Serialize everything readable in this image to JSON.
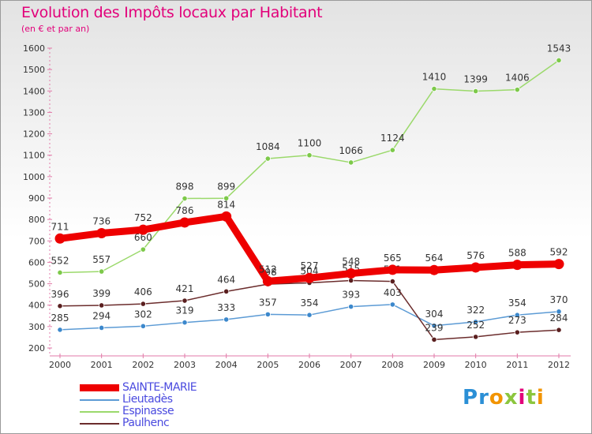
{
  "title": "Evolution des Impôts locaux par Habitant",
  "subtitle": "(en € et par an)",
  "logo_letters": [
    {
      "ch": "P",
      "color": "#2b8fd6"
    },
    {
      "ch": "r",
      "color": "#2b8fd6"
    },
    {
      "ch": "o",
      "color": "#f29400"
    },
    {
      "ch": "x",
      "color": "#8cc63e"
    },
    {
      "ch": "i",
      "color": "#e2007a"
    },
    {
      "ch": "t",
      "color": "#8cc63e"
    },
    {
      "ch": "i",
      "color": "#f29400"
    }
  ],
  "chart_data": {
    "type": "line",
    "title": "Evolution des Impôts locaux par Habitant",
    "ylabel": "(en € et par an)",
    "xlabel": "",
    "x": [
      "2000",
      "2001",
      "2002",
      "2003",
      "2004",
      "2005",
      "2006",
      "2007",
      "2008",
      "2009",
      "2010",
      "2011",
      "2012"
    ],
    "ylim": [
      200,
      1600
    ],
    "yticks": [
      200,
      300,
      400,
      500,
      600,
      700,
      800,
      900,
      1000,
      1100,
      1200,
      1300,
      1400,
      1500,
      1600
    ],
    "grid": false,
    "legend_position": "bottom-left",
    "series": [
      {
        "name": "SAINTE-MARIE",
        "color": "#ee0000",
        "width": 9,
        "values": [
          711,
          736,
          752,
          786,
          814,
          512,
          527,
          548,
          565,
          564,
          576,
          588,
          592
        ],
        "labels": [
          "711",
          "736",
          "752",
          "786",
          "814",
          "512",
          "527",
          "548",
          "565",
          "564",
          "576",
          "588",
          "592"
        ]
      },
      {
        "name": "Lieutadès",
        "color": "#5c9bd5",
        "width": 1.5,
        "marker": "#3c88cc",
        "values": [
          285,
          294,
          302,
          319,
          333,
          357,
          354,
          393,
          403,
          304,
          322,
          354,
          370
        ],
        "labels": [
          "285",
          "294",
          "302",
          "319",
          "333",
          "357",
          "354",
          "393",
          "403",
          "304",
          "322",
          "354",
          "370"
        ]
      },
      {
        "name": "Espinasse",
        "color": "#9bd96b",
        "width": 1.5,
        "marker": "#7dc94a",
        "values": [
          552,
          557,
          660,
          898,
          899,
          1084,
          1100,
          1066,
          1124,
          1410,
          1399,
          1406,
          1543
        ],
        "labels": [
          "552",
          "557",
          "660",
          "898",
          "899",
          "1084",
          "1100",
          "1066",
          "1124",
          "1410",
          "1399",
          "1406",
          "1543"
        ]
      },
      {
        "name": "Paulhenc",
        "color": "#6b2c2c",
        "width": 1.5,
        "marker": "#5a1f1f",
        "values": [
          396,
          399,
          406,
          421,
          464,
          498,
          504,
          515,
          511,
          239,
          252,
          273,
          284
        ],
        "labels": [
          "396",
          "399",
          "406",
          "421",
          "464",
          "498",
          "504",
          "515",
          "511",
          "239",
          "252",
          "273",
          "284"
        ]
      }
    ]
  }
}
